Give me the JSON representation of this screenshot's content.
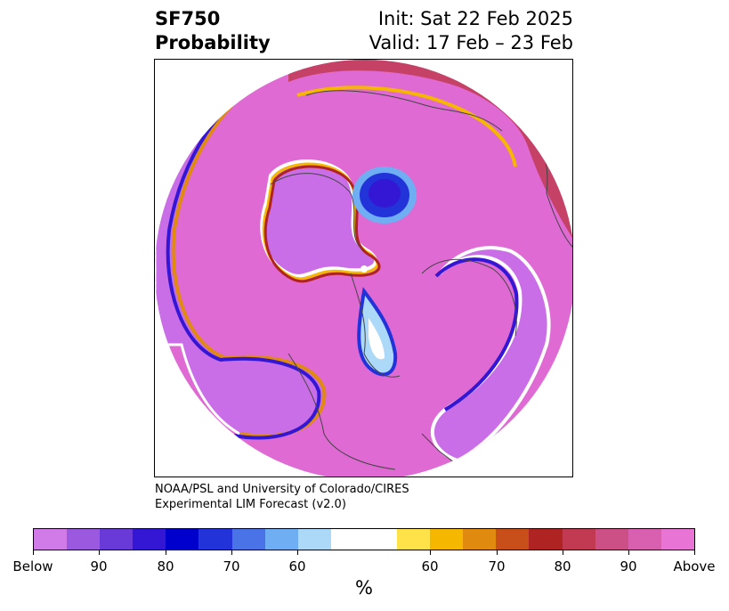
{
  "title": {
    "left_line1": "SF750",
    "left_line2": "Probability",
    "right_line1": "Init: Sat 22 Feb 2025",
    "right_line2": "Valid: 17 Feb – 23 Feb"
  },
  "credit": {
    "line1": "NOAA/PSL and University of Colorado/CIRES",
    "line2": "Experimental LIM Forecast (v2.0)"
  },
  "colorbar": {
    "units": "%",
    "colors": [
      "#d17be8",
      "#9b59e0",
      "#6a3ad9",
      "#3417d4",
      "#0000cc",
      "#2233d9",
      "#4a73e8",
      "#6faef2",
      "#acd9f7",
      "#ffffff",
      "#ffe14a",
      "#f5b700",
      "#e08a10",
      "#c84f1a",
      "#b02323",
      "#c13a52",
      "#cc4f86",
      "#d95fb1",
      "#e875d6"
    ],
    "tick_labels": [
      "Below",
      "90",
      "80",
      "70",
      "60",
      "60",
      "70",
      "80",
      "90",
      "Above"
    ]
  },
  "map_colors": {
    "above": "#e06ad4",
    "below": "#c96ee6",
    "deep_below": "#3417d4"
  }
}
